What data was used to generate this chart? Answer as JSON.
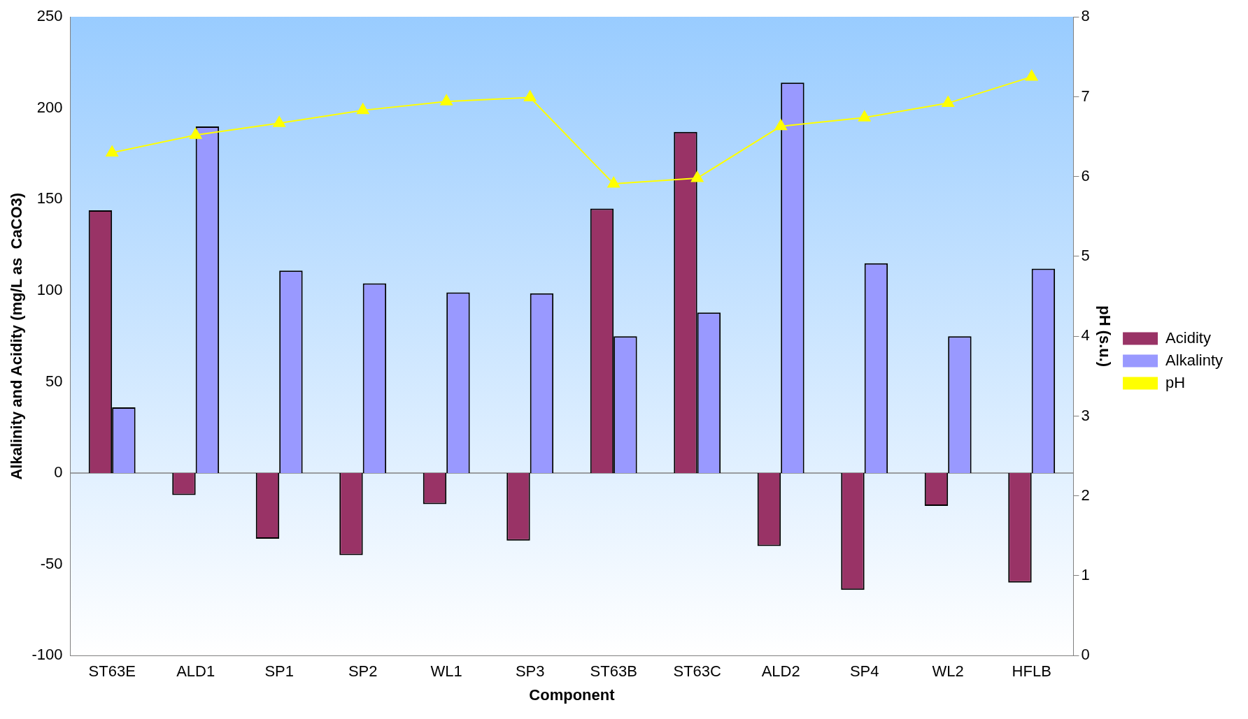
{
  "chart_data": {
    "type": "bar",
    "xlabel": "Component",
    "ylabel": "Alkalinity and Acidity (mg/L as  CaCO3)",
    "y2label": "pH (s.u.)",
    "categories": [
      "ST63E",
      "ALD1",
      "SP1",
      "SP2",
      "WL1",
      "SP3",
      "ST63B",
      "ST63C",
      "ALD2",
      "SP4",
      "WL2",
      "HFLB"
    ],
    "series": [
      {
        "name": "Acidity",
        "color": "#993366",
        "values": [
          144,
          -12,
          -36,
          -45,
          -17,
          -37,
          145,
          187,
          -40,
          -64,
          -18,
          -60
        ]
      },
      {
        "name": "Alkalinty",
        "color": "#9999ff",
        "values": [
          36,
          190,
          111,
          104,
          99,
          98.5,
          75,
          88,
          214,
          115,
          75,
          112
        ]
      },
      {
        "name": "pH",
        "type": "line",
        "axis": "y2",
        "color": "#ffff00",
        "marker": "triangle",
        "values": [
          6.3,
          6.52,
          6.67,
          6.83,
          6.94,
          6.99,
          5.91,
          5.98,
          6.63,
          6.74,
          6.92,
          7.25
        ]
      }
    ],
    "ylim": [
      -100,
      250
    ],
    "yticks": [
      -100,
      -50,
      0,
      50,
      100,
      150,
      200,
      250
    ],
    "y2lim": [
      0,
      8
    ],
    "y2ticks": [
      0,
      1,
      2,
      3,
      4,
      5,
      6,
      7,
      8
    ],
    "ref_lines": [
      {
        "axis": "y",
        "value": 0,
        "color": "#808080"
      }
    ],
    "grid": false,
    "legend": "right"
  }
}
